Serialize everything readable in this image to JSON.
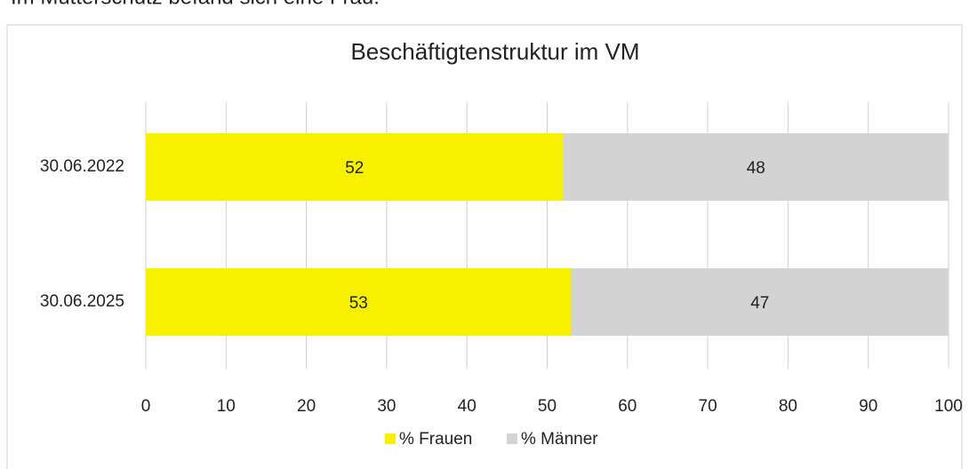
{
  "above_text": "Im Mutterschutz befand sich eine Frau.",
  "chart_data": {
    "type": "stacked_barh",
    "title": "Beschäftigtenstruktur im VM",
    "categories": [
      "30.06.2022",
      "30.06.2025"
    ],
    "series": [
      {
        "name": "% Frauen",
        "color": "#f7f100",
        "values": [
          52,
          53
        ]
      },
      {
        "name": "% Männer",
        "color": "#d3d3d3",
        "values": [
          48,
          47
        ]
      }
    ],
    "xlim": [
      0,
      100
    ],
    "xticks": [
      0,
      10,
      20,
      30,
      40,
      50,
      60,
      70,
      80,
      90,
      100
    ],
    "grid": true,
    "legend": "bottom"
  }
}
